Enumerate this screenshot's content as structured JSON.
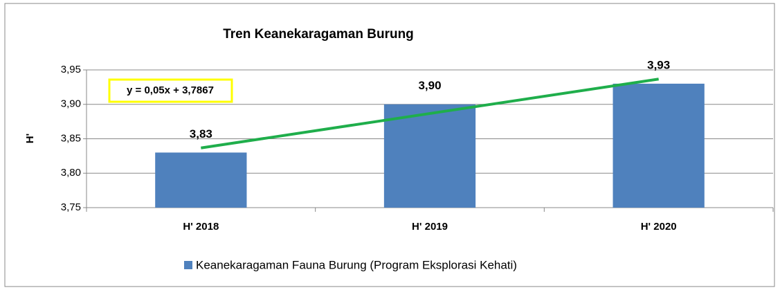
{
  "chart_data": {
    "type": "bar",
    "title": "Tren Keanekaragaman  Burung",
    "ylabel": "H'",
    "categories": [
      "H' 2018",
      "H' 2019",
      "H' 2020"
    ],
    "series": [
      {
        "name": "Keanekaragaman Fauna Burung (Program Eksplorasi Kehati)",
        "color": "#4f81bd",
        "values": [
          3.83,
          3.9,
          3.93
        ],
        "value_labels": [
          "3,83",
          "3,90",
          "3,93"
        ]
      }
    ],
    "ylim": [
      3.75,
      3.95
    ],
    "yticks": [
      {
        "value": 3.75,
        "label": "3,75"
      },
      {
        "value": 3.8,
        "label": "3,80"
      },
      {
        "value": 3.85,
        "label": "3,85"
      },
      {
        "value": 3.9,
        "label": "3,90"
      },
      {
        "value": 3.95,
        "label": "3,95"
      }
    ],
    "grid": true,
    "trendline": {
      "slope": 0.05,
      "intercept": 3.7867,
      "label": "y = 0,05x + 3,7867",
      "color": "#1fae4b"
    },
    "legend": "bottom"
  }
}
